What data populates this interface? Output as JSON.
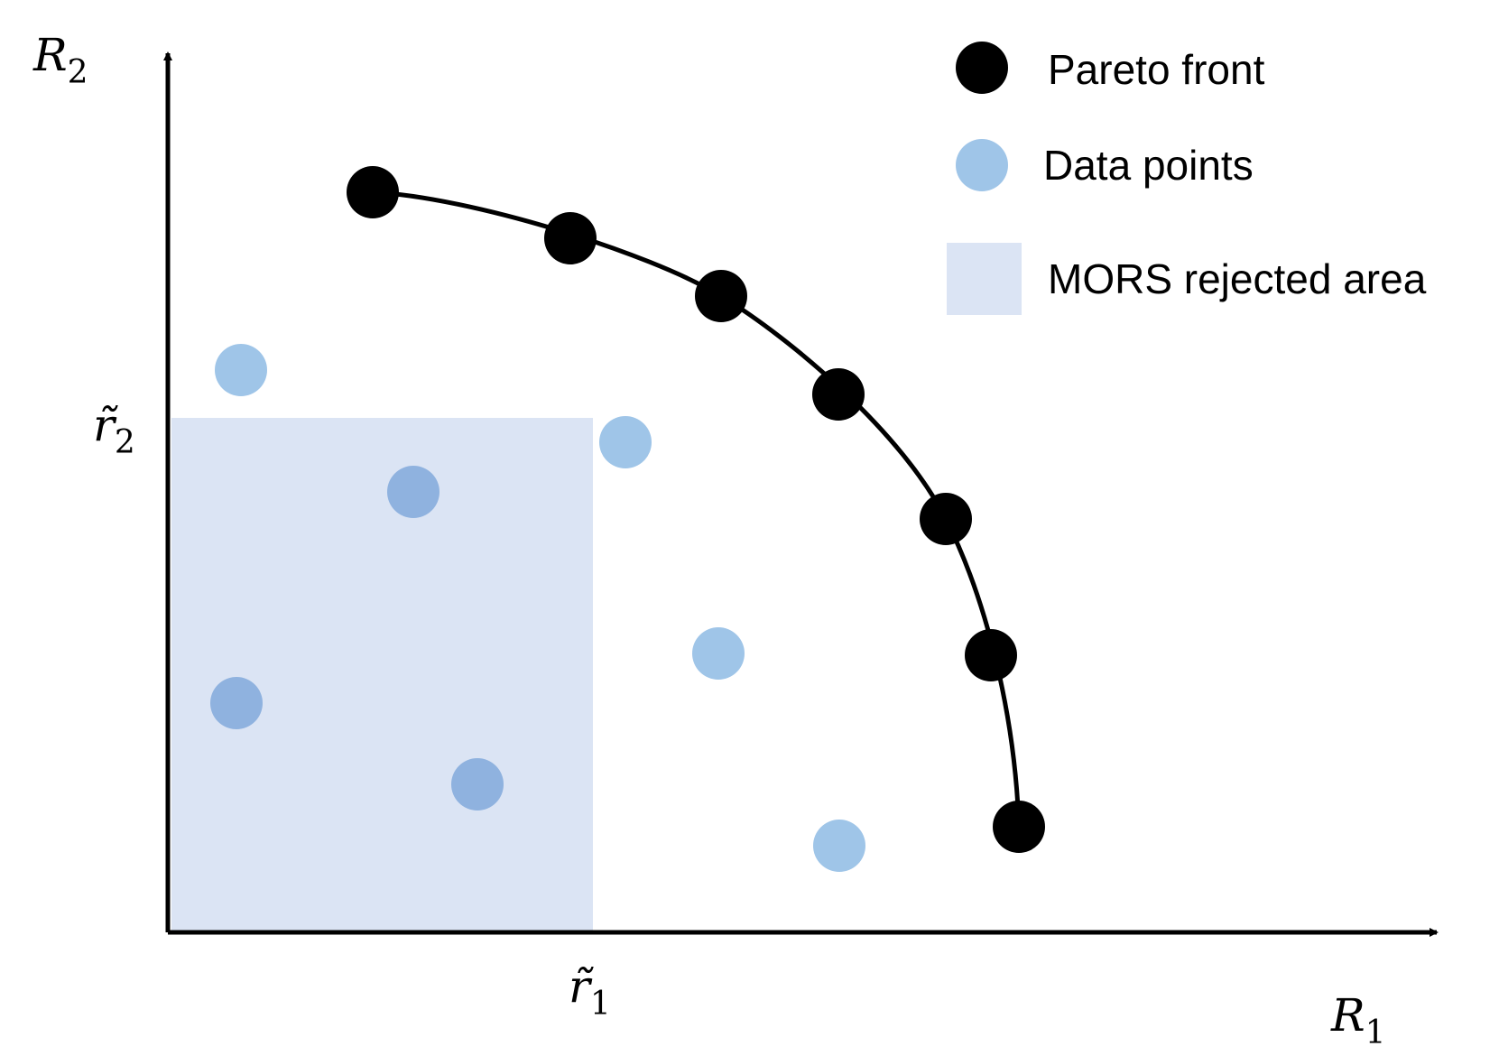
{
  "axes": {
    "y_label": {
      "symbol": "R",
      "subscript": "2"
    },
    "x_label": {
      "symbol": "R",
      "subscript": "1"
    },
    "y_threshold": {
      "symbol": "r̃",
      "subscript": "2"
    },
    "x_threshold": {
      "symbol": "r̃",
      "subscript": "1"
    }
  },
  "legend": {
    "items": [
      "Pareto front",
      "Data points",
      "MORS rejected area"
    ]
  }
}
